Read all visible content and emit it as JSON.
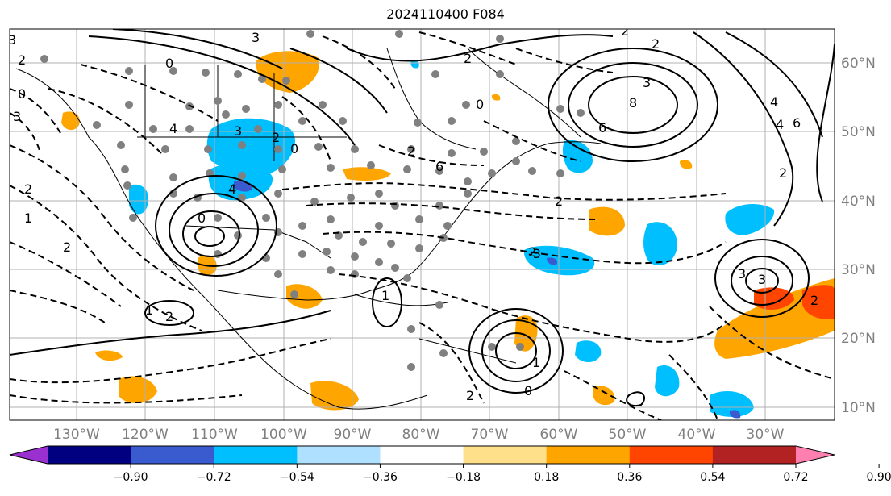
{
  "map": {
    "title": "2024110400 F084",
    "lon_labels": [
      "130°W",
      "120°W",
      "110°W",
      "100°W",
      "90°W",
      "80°W",
      "70°W",
      "60°W",
      "50°W",
      "40°W",
      "30°W"
    ],
    "lat_labels": [
      "60°N",
      "50°N",
      "40°N",
      "30°N",
      "20°N",
      "10°N"
    ],
    "contour_labels": [
      "3",
      "3",
      "0",
      "0",
      "2",
      "0",
      "3",
      "4",
      "3",
      "2",
      "0",
      "4",
      "2",
      "0",
      "6",
      "1",
      "2",
      "2",
      "2",
      "2",
      "2",
      "2",
      "1",
      "1",
      "2",
      "4",
      "3",
      "8",
      "6",
      "6",
      "4",
      "2",
      "3",
      "2",
      "1",
      "0",
      "-3",
      "2",
      "2",
      "3"
    ]
  },
  "colorbar": {
    "ticks": [
      "−0.90",
      "−0.72",
      "−0.54",
      "−0.36",
      "−0.18",
      "0.18",
      "0.36",
      "0.54",
      "0.72",
      "0.90"
    ],
    "colors": [
      "#9a30d0",
      "#000080",
      "#3a5bd0",
      "#00bfff",
      "#b0e0ff",
      "#ffffff",
      "#ffe08a",
      "#ffa500",
      "#ff4500",
      "#b22222",
      "#ff80b0"
    ]
  }
}
